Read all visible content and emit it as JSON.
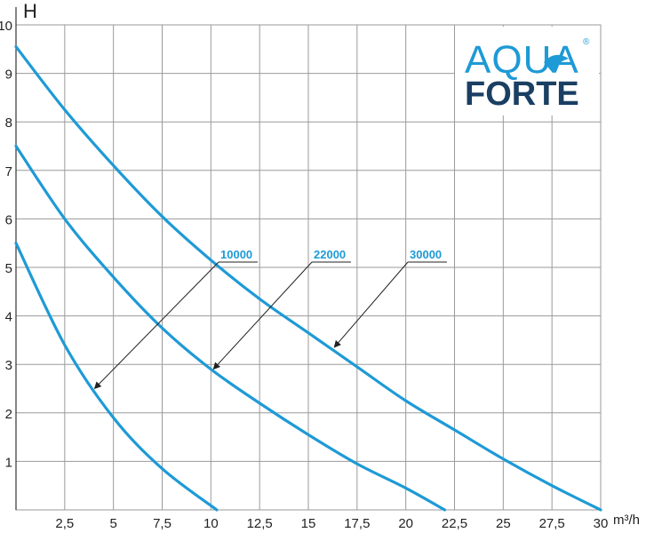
{
  "chart_data": {
    "type": "line",
    "xlabel": "m³/h",
    "ylabel": "H",
    "xlim": [
      0,
      30
    ],
    "ylim": [
      0,
      10
    ],
    "x_ticks": [
      "2,5",
      "5",
      "7,5",
      "10",
      "12,5",
      "15",
      "17,5",
      "20",
      "22,5",
      "25",
      "27,5",
      "30"
    ],
    "x_tick_values": [
      2.5,
      5,
      7.5,
      10,
      12.5,
      15,
      17.5,
      20,
      22.5,
      25,
      27.5,
      30
    ],
    "y_ticks": [
      "1",
      "2",
      "3",
      "4",
      "5",
      "6",
      "7",
      "8",
      "9",
      "10"
    ],
    "y_tick_values": [
      1,
      2,
      3,
      4,
      5,
      6,
      7,
      8,
      9,
      10
    ],
    "grid": true,
    "series": [
      {
        "name": "10000",
        "x": [
          0,
          2.5,
          5,
          7.5,
          10.3
        ],
        "y": [
          5.5,
          3.4,
          1.9,
          0.85,
          0
        ],
        "label_anchor": [
          3.9,
          2.45
        ]
      },
      {
        "name": "22000",
        "x": [
          0,
          2.5,
          5,
          7.5,
          10,
          12.5,
          15,
          17.5,
          20,
          22
        ],
        "y": [
          7.5,
          6.0,
          4.8,
          3.75,
          2.9,
          2.2,
          1.55,
          0.95,
          0.45,
          0
        ],
        "label_anchor": [
          10.0,
          2.85
        ]
      },
      {
        "name": "30000",
        "x": [
          0,
          2.5,
          5,
          7.5,
          10,
          12.5,
          15,
          17.5,
          20,
          22.5,
          25,
          27.5,
          30
        ],
        "y": [
          9.55,
          8.25,
          7.1,
          6.05,
          5.15,
          4.35,
          3.65,
          2.95,
          2.25,
          1.65,
          1.05,
          0.5,
          0
        ],
        "label_anchor": [
          16.2,
          3.3
        ]
      }
    ],
    "colors": {
      "line": "#1e9ad6",
      "label": "#1e9ad6",
      "grid": "#9a9a9a",
      "arrow": "#222222"
    }
  },
  "logo": {
    "top": "AQUA",
    "bottom": "FORTE",
    "registered": "®",
    "top_color": "#1e9ad6",
    "bottom_color": "#1a3f63"
  }
}
